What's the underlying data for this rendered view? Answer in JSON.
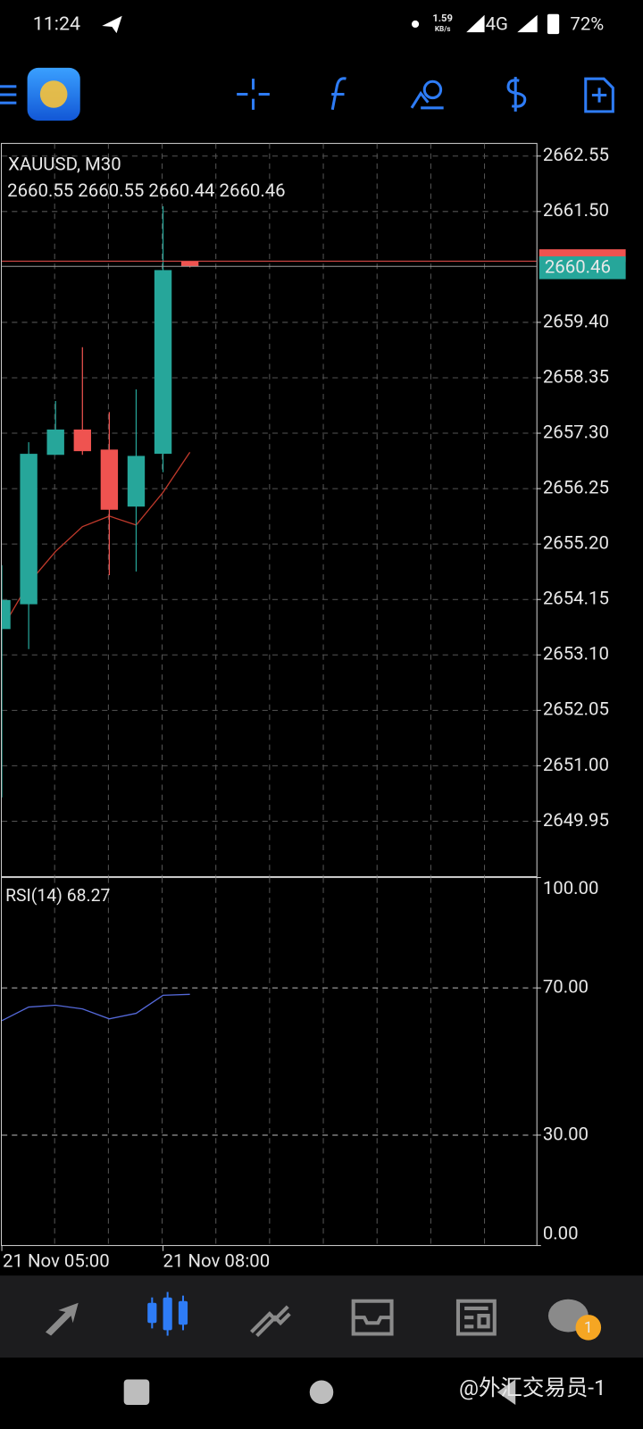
{
  "status_bar": {
    "time": "11:24",
    "speed": "1.59",
    "speed_unit": "KB/s",
    "network": "4G",
    "battery": "72%"
  },
  "chart_data": [
    {
      "type": "candlestick",
      "title": "XAUUSD, M30",
      "subtitle": "2660.55 2660.55 2660.44 2660.46",
      "categories": [
        "21 Nov 05:00",
        null,
        null,
        null,
        null,
        null,
        "21 Nov 08:00",
        null
      ],
      "open": [
        2653.59,
        2654.06,
        2656.89,
        2657.37,
        2656.99,
        2655.91,
        2656.91,
        2660.55
      ],
      "high": [
        2654.8,
        2657.13,
        2657.91,
        2658.93,
        2657.7,
        2658.13,
        2661.6,
        2660.55
      ],
      "low": [
        2650.4,
        2653.21,
        2656.89,
        2656.89,
        2654.61,
        2654.68,
        2656.56,
        2660.44
      ],
      "close": [
        2654.14,
        2656.91,
        2657.37,
        2656.96,
        2655.85,
        2656.87,
        2660.39,
        2660.46
      ],
      "up_color": "#26a69a",
      "down_color": "#ef5350",
      "overlay": {
        "color": "#c0392b",
        "values": [
          2653.59,
          2654.46,
          2655.06,
          2655.53,
          2655.73,
          2655.56,
          2656.18,
          2656.94
        ]
      },
      "bid": 2660.46,
      "ask": 2660.56,
      "ylim": [
        2648.9,
        2662.79
      ],
      "yticks": [
        2662.55,
        {
          "value": 2661.5,
          "label": "2661.50"
        },
        {
          "value": 2659.4,
          "label": "2659.40"
        },
        2658.35,
        {
          "value": 2657.3,
          "label": "2657.30"
        },
        2656.25,
        {
          "value": 2655.2,
          "label": "2655.20"
        },
        2654.15,
        {
          "value": 2653.1,
          "label": "2653.10"
        },
        2652.05,
        {
          "value": 2651,
          "label": "2651.00"
        },
        2649.95
      ],
      "grid": true
    },
    {
      "type": "line",
      "title": "RSI(14) 68.27",
      "series": [
        {
          "color": "#5468d8",
          "values": [
            61.1,
            64.8,
            65.3,
            64.3,
            61.6,
            63.1,
            68.0,
            68.27
          ]
        }
      ],
      "ylim": [
        0,
        100
      ],
      "yticks": [
        {
          "value": 0,
          "label": "0.00"
        },
        {
          "value": 30,
          "label": "30.00"
        },
        {
          "value": 70,
          "label": "70.00"
        },
        {
          "value": 100,
          "label": "100.00"
        }
      ],
      "grid": true
    }
  ],
  "nav": {
    "badge": "1"
  },
  "watermark": "@外汇交易员-1"
}
